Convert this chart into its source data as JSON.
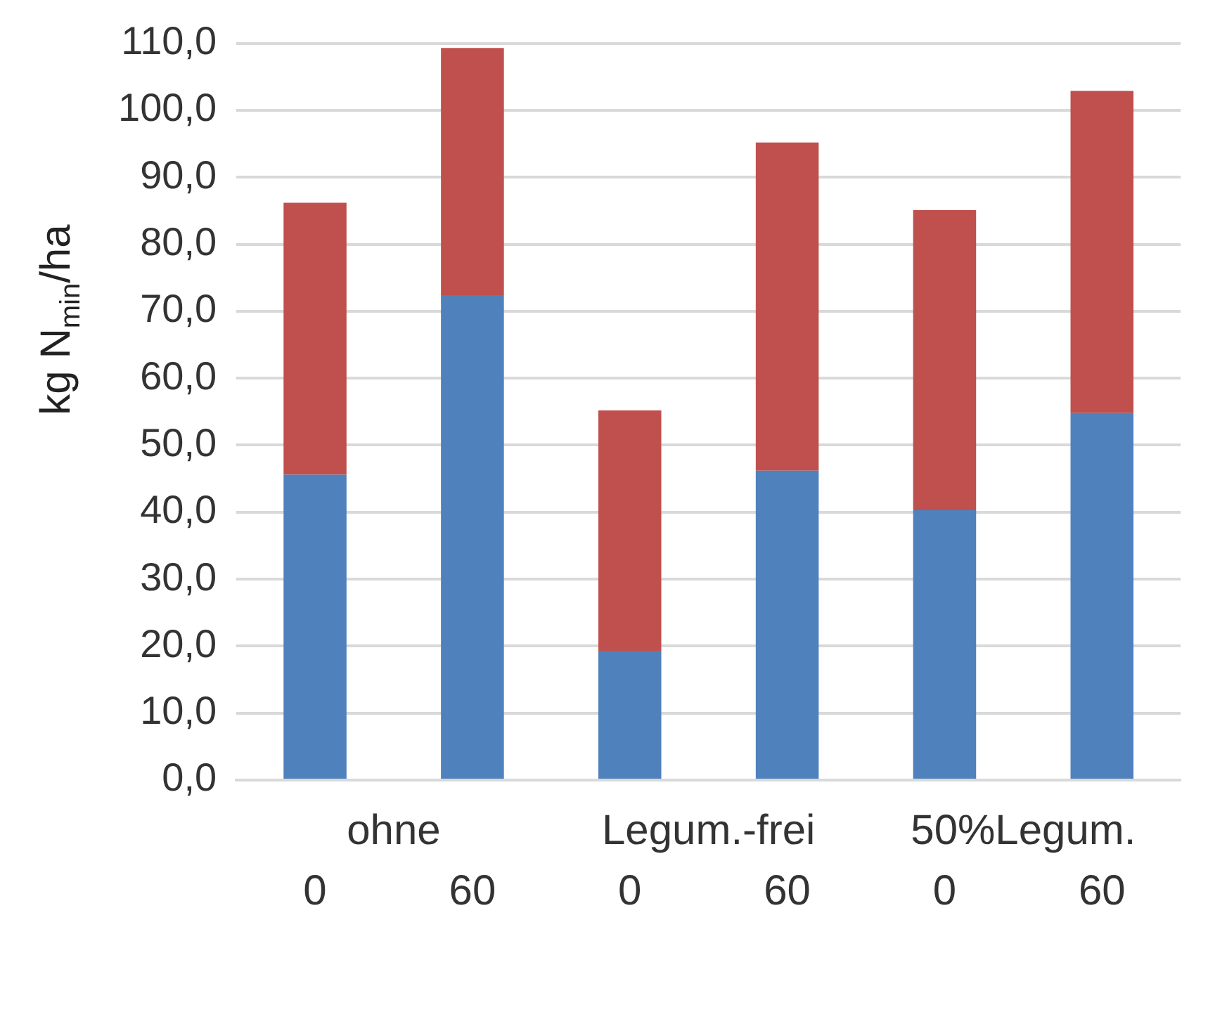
{
  "chart_data": {
    "type": "bar",
    "stacked": true,
    "ylabel": "kg N$_{min}$/ha",
    "categories": [
      "0",
      "60",
      "0",
      "60",
      "0",
      "60"
    ],
    "annotations": [
      "ohne",
      "Legum.-frei",
      "50%Legum."
    ],
    "series": [
      {
        "color": "#4f81bd",
        "values": [
          45.6,
          72.4,
          19.3,
          46.2,
          40.3,
          54.8
        ]
      },
      {
        "color": "#c0504d",
        "values": [
          40.6,
          36.9,
          35.9,
          49.0,
          44.8,
          48.1
        ]
      }
    ],
    "ylim": [
      0,
      110
    ],
    "yticks": [
      {
        "value": 0,
        "label": "0,0"
      },
      {
        "value": 10,
        "label": "10,0"
      },
      {
        "value": 20,
        "label": "20,0"
      },
      {
        "value": 30,
        "label": "30,0"
      },
      {
        "value": 40,
        "label": "40,0"
      },
      {
        "value": 50,
        "label": "50,0"
      },
      {
        "value": 60,
        "label": "60,0"
      },
      {
        "value": 70,
        "label": "70,0"
      },
      {
        "value": 80,
        "label": "80,0"
      },
      {
        "value": 90,
        "label": "90,0"
      },
      {
        "value": 100,
        "label": "100,0"
      },
      {
        "value": 110,
        "label": "110,0"
      }
    ],
    "grid": "y",
    "legend": false
  }
}
